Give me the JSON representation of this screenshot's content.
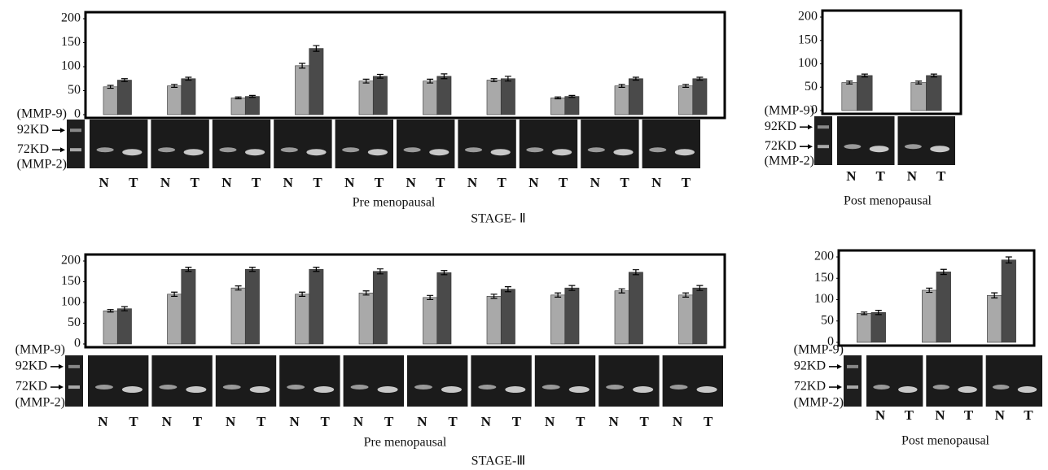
{
  "chart_data": [
    {
      "type": "bar",
      "categories": [
        null,
        null,
        null,
        null,
        null,
        null,
        null,
        null,
        null,
        null
      ],
      "series": [
        {
          "name": "N",
          "color": "#a9a9a9",
          "values": [
            58,
            60,
            35,
            102,
            70,
            70,
            72,
            35,
            60,
            60
          ],
          "errors": [
            3,
            3,
            2,
            5,
            4,
            4,
            3,
            2,
            3,
            3
          ]
        },
        {
          "name": "T",
          "color": "#4a4a4a",
          "values": [
            72,
            75,
            38,
            138,
            80,
            80,
            75,
            38,
            75,
            75
          ],
          "errors": [
            3,
            3,
            2,
            6,
            4,
            5,
            5,
            2,
            3,
            3
          ]
        }
      ],
      "ylim": [
        0,
        200
      ],
      "yticks": [
        0,
        50,
        100,
        150,
        200
      ],
      "gel_labels": [
        "(MMP-9)",
        "92KD",
        "72KD",
        "(MMP-2)"
      ],
      "x_label": "Pre menopausal"
    },
    {
      "type": "bar",
      "categories": [
        null,
        null
      ],
      "series": [
        {
          "name": "N",
          "color": "#a9a9a9",
          "values": [
            60,
            60
          ],
          "errors": [
            3,
            3
          ]
        },
        {
          "name": "T",
          "color": "#4a4a4a",
          "values": [
            75,
            75
          ],
          "errors": [
            3,
            3
          ]
        }
      ],
      "ylim": [
        0,
        200
      ],
      "yticks": [
        0,
        50,
        100,
        150,
        200
      ],
      "gel_labels": [
        "(MMP-9)",
        "92KD",
        "72KD",
        "(MMP-2)"
      ],
      "x_label": "Post menopausal"
    },
    {
      "type": "bar",
      "categories": [
        null,
        null,
        null,
        null,
        null,
        null,
        null,
        null,
        null,
        null
      ],
      "series": [
        {
          "name": "N",
          "color": "#a9a9a9",
          "values": [
            80,
            120,
            135,
            120,
            123,
            112,
            115,
            118,
            128,
            118
          ],
          "errors": [
            3,
            5,
            5,
            5,
            5,
            5,
            5,
            5,
            5,
            5
          ]
        },
        {
          "name": "T",
          "color": "#4a4a4a",
          "values": [
            85,
            180,
            180,
            180,
            175,
            172,
            132,
            135,
            173,
            135
          ],
          "errors": [
            5,
            5,
            5,
            5,
            6,
            5,
            6,
            6,
            6,
            6
          ]
        }
      ],
      "ylim": [
        0,
        200
      ],
      "yticks": [
        0,
        50,
        100,
        150,
        200
      ],
      "gel_labels": [
        "(MMP-9)",
        "92KD",
        "72KD",
        "(MMP-2)"
      ],
      "x_label": "Pre menopausal"
    },
    {
      "type": "bar",
      "categories": [
        null,
        null,
        null
      ],
      "series": [
        {
          "name": "N",
          "color": "#a9a9a9",
          "values": [
            68,
            122,
            110
          ],
          "errors": [
            3,
            5,
            6
          ]
        },
        {
          "name": "T",
          "color": "#4a4a4a",
          "values": [
            70,
            165,
            193
          ],
          "errors": [
            5,
            6,
            7
          ]
        }
      ],
      "ylim": [
        0,
        200
      ],
      "yticks": [
        0,
        50,
        100,
        150,
        200
      ],
      "gel_labels": [
        "(MMP-9)",
        "92KD",
        "72KD",
        "(MMP-2)"
      ],
      "x_label": "Post menopausal"
    }
  ],
  "stage_labels": [
    "STAGE- Ⅱ",
    "STAGE-Ⅲ"
  ]
}
